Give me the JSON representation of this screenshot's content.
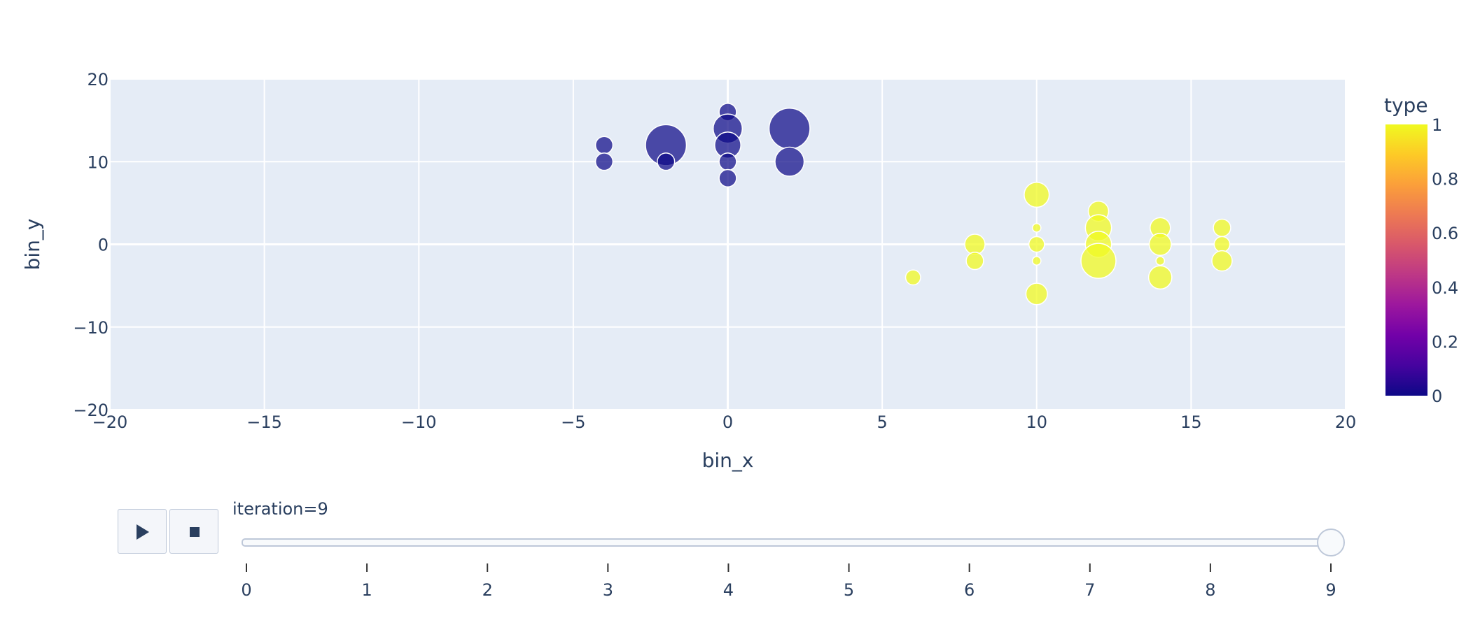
{
  "chart_data": {
    "type": "scatter",
    "xlabel": "bin_x",
    "ylabel": "bin_y",
    "xlim": [
      -20,
      20
    ],
    "ylim": [
      -20,
      20
    ],
    "xticks": [
      "−20",
      "−15",
      "−10",
      "−5",
      "0",
      "5",
      "10",
      "15",
      "20"
    ],
    "xtick_values": [
      -20,
      -15,
      -10,
      -5,
      0,
      5,
      10,
      15,
      20
    ],
    "yticks": [
      "−20",
      "−10",
      "0",
      "10",
      "20"
    ],
    "ytick_values": [
      -20,
      -10,
      0,
      10,
      20
    ],
    "grid": true,
    "plot_bg": "#e5ecf6",
    "colorbar": {
      "title": "type",
      "range": [
        0,
        1
      ],
      "ticks": [
        "0",
        "0.2",
        "0.4",
        "0.6",
        "0.8",
        "1"
      ],
      "tick_values": [
        0,
        0.2,
        0.4,
        0.6,
        0.8,
        1
      ],
      "colors": [
        "#0d0887",
        "#46039f",
        "#7201a8",
        "#9c179e",
        "#bd3786",
        "#d8576b",
        "#ed7953",
        "#fb9f3a",
        "#fdca26",
        "#f0f921"
      ]
    },
    "points": [
      {
        "x": -4,
        "y": 12,
        "size": 2,
        "type": 0
      },
      {
        "x": -4,
        "y": 10,
        "size": 2,
        "type": 0
      },
      {
        "x": -2,
        "y": 12,
        "size": 6,
        "type": 0
      },
      {
        "x": -2,
        "y": 10,
        "size": 2,
        "type": 0
      },
      {
        "x": 0,
        "y": 16,
        "size": 2,
        "type": 0
      },
      {
        "x": 0,
        "y": 14,
        "size": 4,
        "type": 0
      },
      {
        "x": 0,
        "y": 12,
        "size": 3.5,
        "type": 0
      },
      {
        "x": 0,
        "y": 10,
        "size": 2,
        "type": 0
      },
      {
        "x": 0,
        "y": 8,
        "size": 2,
        "type": 0
      },
      {
        "x": 2,
        "y": 14,
        "size": 6,
        "type": 0
      },
      {
        "x": 2,
        "y": 10,
        "size": 4,
        "type": 0
      },
      {
        "x": 6,
        "y": -4,
        "size": 1.6,
        "type": 1
      },
      {
        "x": 8,
        "y": 0,
        "size": 2.5,
        "type": 1
      },
      {
        "x": 8,
        "y": -2,
        "size": 2,
        "type": 1
      },
      {
        "x": 10,
        "y": 6,
        "size": 3.3,
        "type": 1
      },
      {
        "x": 10,
        "y": 2,
        "size": 0.5,
        "type": 1
      },
      {
        "x": 10,
        "y": 0,
        "size": 1.7,
        "type": 1
      },
      {
        "x": 10,
        "y": -2,
        "size": 0.5,
        "type": 1
      },
      {
        "x": 10,
        "y": -6,
        "size": 2.7,
        "type": 1
      },
      {
        "x": 12,
        "y": 4,
        "size": 2.5,
        "type": 1
      },
      {
        "x": 12,
        "y": 2,
        "size": 3.5,
        "type": 1
      },
      {
        "x": 12,
        "y": 0,
        "size": 3.5,
        "type": 1
      },
      {
        "x": 12,
        "y": -2,
        "size": 5,
        "type": 1
      },
      {
        "x": 14,
        "y": 2,
        "size": 2.5,
        "type": 1
      },
      {
        "x": 14,
        "y": 0,
        "size": 2.8,
        "type": 1
      },
      {
        "x": 14,
        "y": -2,
        "size": 0.5,
        "type": 1
      },
      {
        "x": 14,
        "y": -4,
        "size": 3,
        "type": 1
      },
      {
        "x": 16,
        "y": 2,
        "size": 2,
        "type": 1
      },
      {
        "x": 16,
        "y": 0,
        "size": 1.7,
        "type": 1
      },
      {
        "x": 16,
        "y": -2,
        "size": 2.5,
        "type": 1
      }
    ]
  },
  "animation": {
    "current_label": "iteration=9",
    "current_value": 9,
    "steps": [
      "0",
      "1",
      "2",
      "3",
      "4",
      "5",
      "6",
      "7",
      "8",
      "9"
    ],
    "step_values": [
      0,
      1,
      2,
      3,
      4,
      5,
      6,
      7,
      8,
      9
    ],
    "play_icon": "play-icon",
    "stop_icon": "stop-icon"
  }
}
